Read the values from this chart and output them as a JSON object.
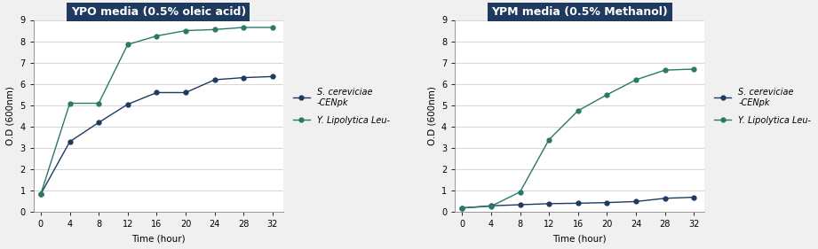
{
  "left_title": "YPO media (0.5% oleic acid)",
  "right_title": "YPM media (0.5% Methanol)",
  "title_bg_color": "#1e3a5f",
  "title_text_color": "#ffffff",
  "xlabel": "Time (hour)",
  "ylabel": "O.D (600nm)",
  "x_ticks": [
    0,
    4,
    8,
    12,
    16,
    20,
    24,
    28,
    32
  ],
  "ylim": [
    0,
    9
  ],
  "yticks": [
    0,
    1,
    2,
    3,
    4,
    5,
    6,
    7,
    8,
    9
  ],
  "line_color_sc": "#1e3a5f",
  "line_color_yl": "#2a7868",
  "left_sc_x": [
    0,
    4,
    8,
    12,
    16,
    20,
    24,
    28,
    32
  ],
  "left_sc_y": [
    0.85,
    3.3,
    4.2,
    5.05,
    5.6,
    5.6,
    6.2,
    6.3,
    6.35
  ],
  "left_yl_x": [
    0,
    4,
    8,
    12,
    16,
    20,
    24,
    28,
    32
  ],
  "left_yl_y": [
    0.85,
    5.1,
    5.1,
    7.85,
    8.25,
    8.5,
    8.55,
    8.65,
    8.65
  ],
  "right_sc_x": [
    0,
    4,
    8,
    12,
    16,
    20,
    24,
    28,
    32
  ],
  "right_sc_y": [
    0.2,
    0.3,
    0.35,
    0.4,
    0.42,
    0.45,
    0.5,
    0.65,
    0.7
  ],
  "right_yl_x": [
    0,
    4,
    8,
    12,
    16,
    20,
    24,
    28,
    32
  ],
  "right_yl_y": [
    0.2,
    0.28,
    0.95,
    3.4,
    4.75,
    5.5,
    6.2,
    6.65,
    6.7
  ],
  "legend_sc_line1": "S. cereviciae",
  "legend_sc_line2": "-CENpk",
  "legend_yl": "Y. Lipolytica",
  "legend_yl_suffix": " Leu-",
  "bg_color": "#f0f0f0",
  "plot_bg_color": "#ffffff",
  "grid_color": "#d0d0d0",
  "font_size_label": 7.5,
  "font_size_tick": 7,
  "font_size_title": 9,
  "font_size_legend": 7
}
